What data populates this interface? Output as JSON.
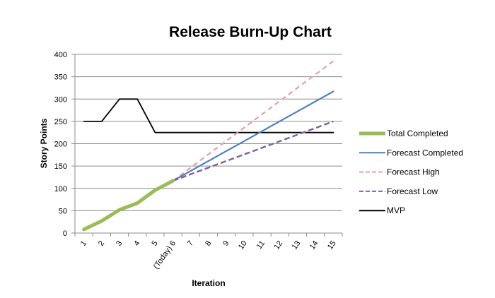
{
  "chart_data": {
    "type": "line",
    "title": "Release Burn-Up Chart",
    "xlabel": "Iteration",
    "ylabel": "Story Points",
    "ylim": [
      0,
      400
    ],
    "yticks": [
      0,
      50,
      100,
      150,
      200,
      250,
      300,
      350,
      400
    ],
    "categories": [
      "1",
      "2",
      "3",
      "4",
      "5",
      "(Today) 6",
      "7",
      "8",
      "9",
      "10",
      "11",
      "12",
      "13",
      "14",
      "15"
    ],
    "grid": true,
    "legend_position": "right",
    "series": [
      {
        "name": "Total Completed",
        "color": "#9bbb59",
        "dash": "solid",
        "x": [
          1,
          2,
          3,
          4,
          5,
          6
        ],
        "values": [
          8,
          27,
          52,
          67,
          96,
          117
        ]
      },
      {
        "name": "Forecast Completed",
        "color": "#4f81bd",
        "dash": "solid",
        "x": [
          6,
          15
        ],
        "values": [
          117,
          317
        ]
      },
      {
        "name": "Forecast High",
        "color": "#e6a1a1",
        "dash": "dashed",
        "x": [
          6,
          15
        ],
        "values": [
          117,
          385
        ]
      },
      {
        "name": "Forecast Low",
        "color": "#8064a2",
        "dash": "dashed",
        "x": [
          6,
          15
        ],
        "values": [
          117,
          250
        ]
      },
      {
        "name": "MVP",
        "color": "#000000",
        "dash": "solid",
        "x": [
          1,
          2,
          3,
          4,
          5,
          6,
          7,
          8,
          9,
          10,
          11,
          12,
          13,
          14,
          15
        ],
        "values": [
          250,
          250,
          300,
          300,
          225,
          225,
          225,
          225,
          225,
          225,
          225,
          225,
          225,
          225,
          225
        ]
      }
    ]
  }
}
